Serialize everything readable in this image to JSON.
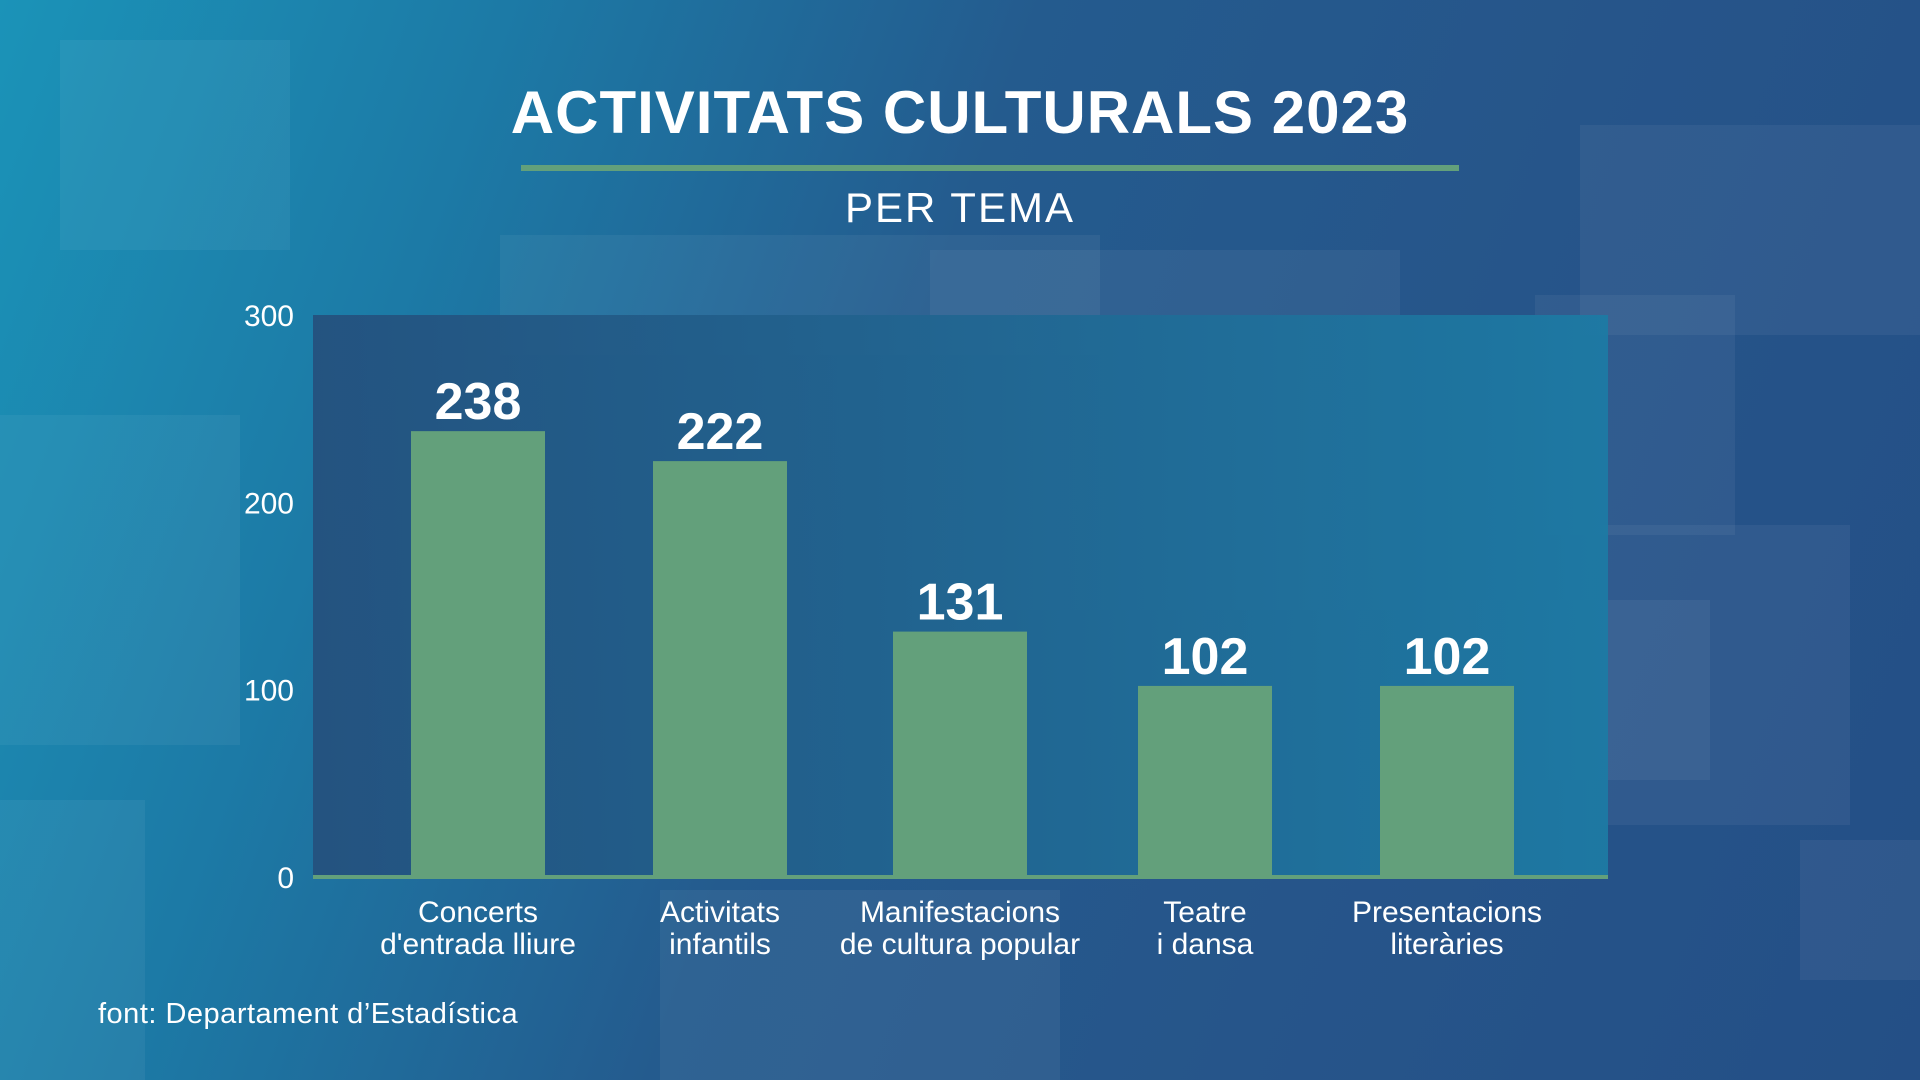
{
  "title": "ACTIVITATS CULTURALS 2023",
  "subtitle": "PER TEMA",
  "source": "font: Departament d’Estadística",
  "colors": {
    "bar": "#63a07b",
    "plot_bg": "#24527f",
    "axis": "#63a07b"
  },
  "chart_data": {
    "type": "bar",
    "categories": [
      [
        "Concerts",
        "d'entrada lliure"
      ],
      [
        "Activitats",
        "infantils"
      ],
      [
        "Manifestacions",
        "de cultura popular"
      ],
      [
        "Teatre",
        "i dansa"
      ],
      [
        "Presentacions",
        "literàries"
      ]
    ],
    "values": [
      238,
      222,
      131,
      102,
      102
    ],
    "ylim": [
      0,
      300
    ],
    "yticks": [
      0,
      100,
      200,
      300
    ],
    "grid": false,
    "legend": "none"
  }
}
